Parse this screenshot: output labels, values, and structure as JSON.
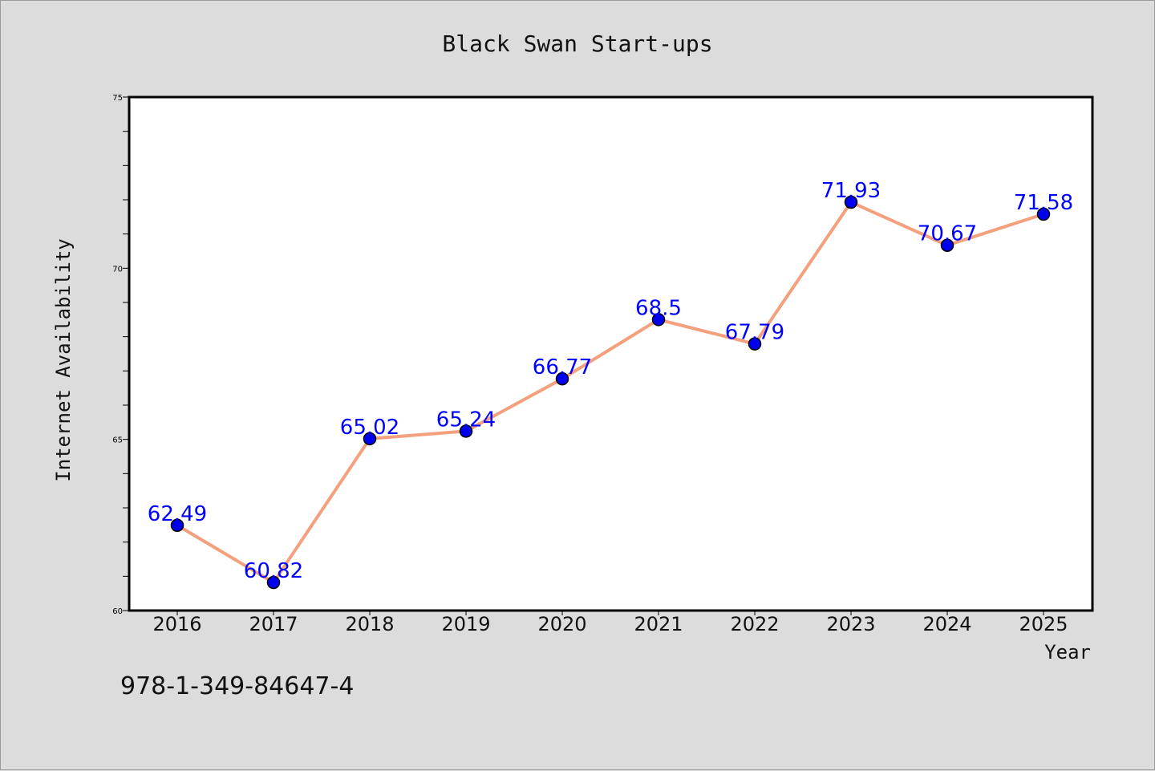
{
  "chart_data": {
    "type": "line",
    "title": "Black Swan Start-ups",
    "xlabel": "Year",
    "ylabel": "Internet Availability",
    "categories": [
      "2016",
      "2017",
      "2018",
      "2019",
      "2020",
      "2021",
      "2022",
      "2023",
      "2024",
      "2025"
    ],
    "series": [
      {
        "values": [
          62.49,
          60.82,
          65.02,
          65.24,
          66.77,
          68.5,
          67.79,
          71.93,
          70.67,
          71.58
        ]
      }
    ],
    "data_labels": [
      "62.49",
      "60.82",
      "65.02",
      "65.24",
      "66.77",
      "68.5",
      "67.79",
      "71.93",
      "70.67",
      "71.58"
    ],
    "ylim": [
      60,
      75
    ],
    "y_major_ticks": [
      "60",
      "65",
      "70",
      "75"
    ],
    "y_minor_step": 1,
    "grid": false,
    "legend": "none",
    "line_color": "#f4a07c",
    "marker_color": "#0000ee",
    "label_color": "#0000ff",
    "plot_background": "#ffffff",
    "figure_background": "#dcdcdc"
  },
  "footer_text": "978-1-349-84647-4"
}
